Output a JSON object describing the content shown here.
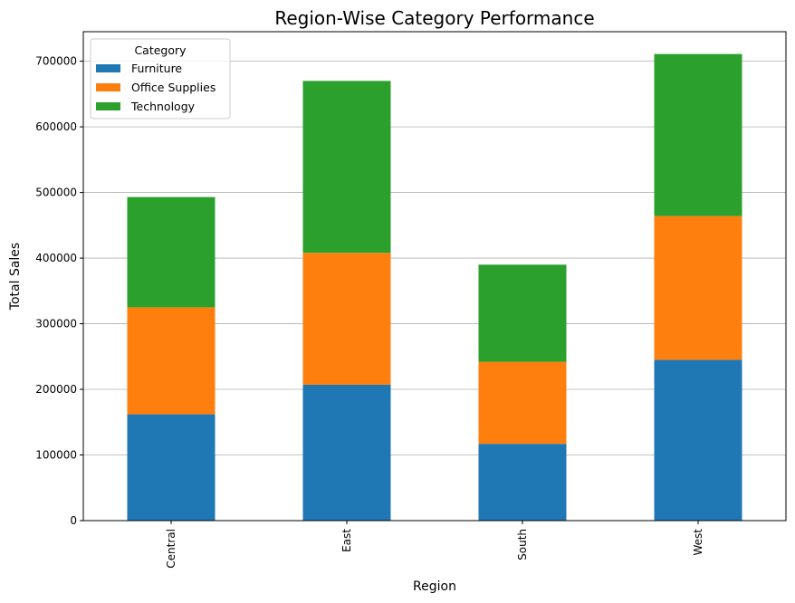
{
  "chart_data": {
    "type": "bar",
    "stacked": true,
    "title": "Region-Wise Category Performance",
    "xlabel": "Region",
    "ylabel": "Total Sales",
    "categories": [
      "Central",
      "East",
      "South",
      "West"
    ],
    "series": [
      {
        "name": "Furniture",
        "color": "#1f77b4",
        "values": [
          162000,
          207000,
          117000,
          245000
        ]
      },
      {
        "name": "Office Supplies",
        "color": "#ff7f0e",
        "values": [
          163000,
          201000,
          125000,
          219000
        ]
      },
      {
        "name": "Technology",
        "color": "#2ca02c",
        "values": [
          168000,
          262000,
          148000,
          247000
        ]
      }
    ],
    "ylim": [
      0,
      745000
    ],
    "yticks": [
      0,
      100000,
      200000,
      300000,
      400000,
      500000,
      600000,
      700000
    ],
    "grid": "y",
    "legend": {
      "title": "Category",
      "position": "top-left"
    }
  }
}
